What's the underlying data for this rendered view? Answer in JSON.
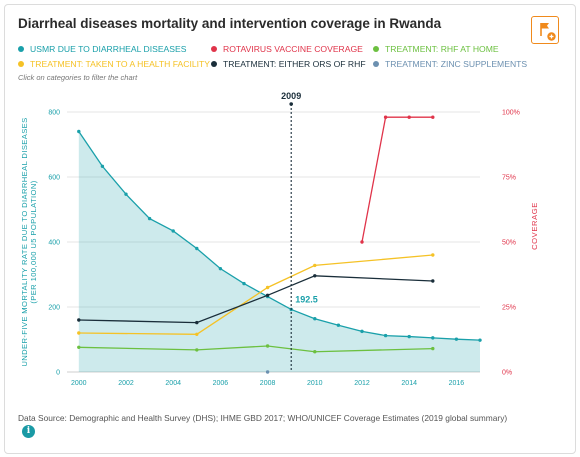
{
  "title": "Diarrheal diseases mortality and intervention coverage in Rwanda",
  "hint": "Click on categories to filter the chart",
  "source": "Data Source: Demographic and Health Survey (DHS); IHME GBD 2017; WHO/UNICEF Coverage Estimates (2019 global summary)",
  "icons": {
    "flag": "flag-plus-icon",
    "info": "info-icon",
    "info_glyph": "i"
  },
  "legend": [
    {
      "label": "USMR DUE TO DIARRHEAL DISEASES",
      "color": "#1aa0aa"
    },
    {
      "label": "ROTAVIRUS VACCINE COVERAGE",
      "color": "#e0344a"
    },
    {
      "label": "TREATMENT: RHF AT HOME",
      "color": "#6cc040"
    },
    {
      "label": "TREATMENT: TAKEN TO A HEALTH FACILITY",
      "color": "#f5c226"
    },
    {
      "label": "TREATMENT: EITHER ORS OF RHF",
      "color": "#1a2e3a"
    },
    {
      "label": "TREATMENT: ZINC SUPPLEMENTS",
      "color": "#6c90b0"
    }
  ],
  "chart_data": {
    "type": "line",
    "title": "Diarrheal diseases mortality and intervention coverage in Rwanda",
    "xlabel": "",
    "ylabel": "UNDER-FIVE MORTALITY RATE DUE TO DIARRHEAL DISEASES (PER 100,000 U5 POPULATION)",
    "y2label": "COVERAGE",
    "xlim": [
      1999.5,
      2017
    ],
    "ylim": [
      0,
      800
    ],
    "y2lim": [
      0,
      100
    ],
    "x_ticks": [
      "2000",
      "2002",
      "2004",
      "2006",
      "2008",
      "2010",
      "2012",
      "2014",
      "2016"
    ],
    "y_ticks": [
      "0",
      "200",
      "400",
      "600",
      "800"
    ],
    "y2_ticks": [
      "0%",
      "25%",
      "50%",
      "75%",
      "100%"
    ],
    "grid": true,
    "legend_position": "top",
    "highlight": {
      "x": 2009,
      "x_label": "2009",
      "value_label": "192.5"
    },
    "series": [
      {
        "name": "USMR DUE TO DIARRHEAL DISEASES",
        "axis": "left",
        "area": true,
        "color": "#1aa0aa",
        "x": [
          2000,
          2001,
          2002,
          2003,
          2004,
          2005,
          2006,
          2007,
          2008,
          2009,
          2010,
          2011,
          2012,
          2013,
          2014,
          2015,
          2016,
          2017
        ],
        "y": [
          740,
          633,
          547,
          472,
          434,
          380,
          318,
          272,
          232,
          192.5,
          164,
          144,
          125,
          112,
          109,
          105,
          101,
          98
        ]
      },
      {
        "name": "ROTAVIRUS VACCINE COVERAGE",
        "axis": "right",
        "color": "#e0344a",
        "x": [
          2012,
          2013,
          2014,
          2015
        ],
        "y": [
          50,
          98,
          98,
          98
        ]
      },
      {
        "name": "TREATMENT: RHF AT HOME",
        "axis": "right",
        "color": "#6cc040",
        "x": [
          2000,
          2005,
          2008,
          2010,
          2015
        ],
        "y": [
          9.5,
          8.5,
          10,
          7.8,
          9
        ]
      },
      {
        "name": "TREATMENT: TAKEN TO A HEALTH FACILITY",
        "axis": "right",
        "color": "#f5c226",
        "x": [
          2000,
          2005,
          2008,
          2010,
          2015
        ],
        "y": [
          15,
          14.5,
          32.5,
          41,
          45
        ]
      },
      {
        "name": "TREATMENT: EITHER ORS OF RHF",
        "axis": "right",
        "color": "#1a2e3a",
        "x": [
          2000,
          2005,
          2008,
          2010,
          2015
        ],
        "y": [
          20,
          19,
          29.5,
          37,
          35
        ]
      },
      {
        "name": "TREATMENT: ZINC SUPPLEMENTS",
        "axis": "right",
        "color": "#6c90b0",
        "x": [
          2008
        ],
        "y": [
          0
        ]
      }
    ]
  }
}
